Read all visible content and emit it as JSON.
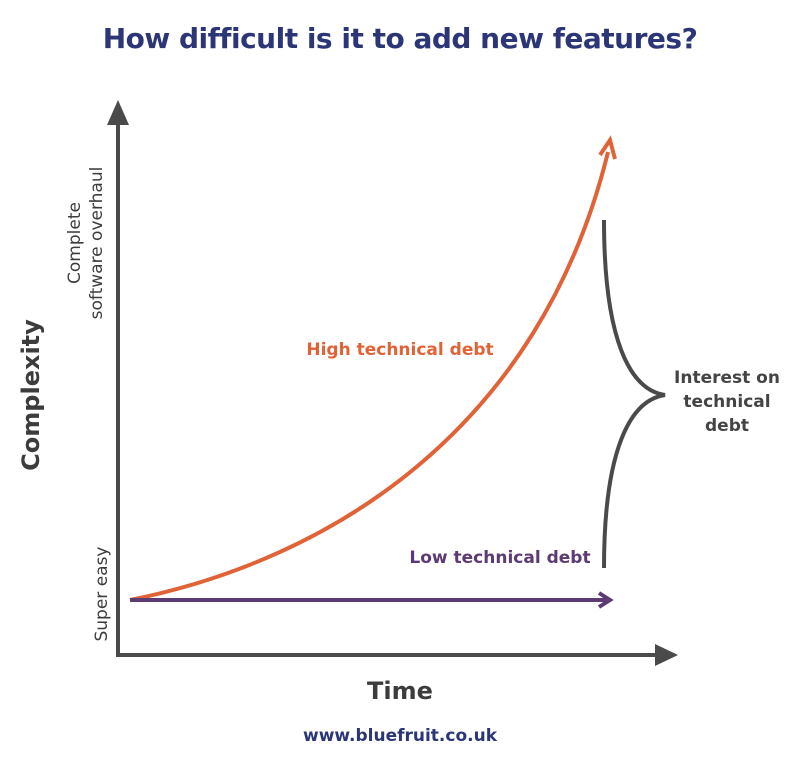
{
  "title": "How difficult is it to add new features?",
  "y_axis": {
    "label": "Complexity",
    "low": "Super easy",
    "high": {
      "lines": [
        "Complete",
        "software overhaul"
      ]
    }
  },
  "x_axis": {
    "label": "Time"
  },
  "curves": [
    {
      "label": "High technical debt"
    },
    {
      "label": "Low technical debt"
    }
  ],
  "annotation": {
    "lines": [
      "Interest on",
      "technical",
      "debt"
    ]
  },
  "footer": "www.bluefruit.co.uk"
}
